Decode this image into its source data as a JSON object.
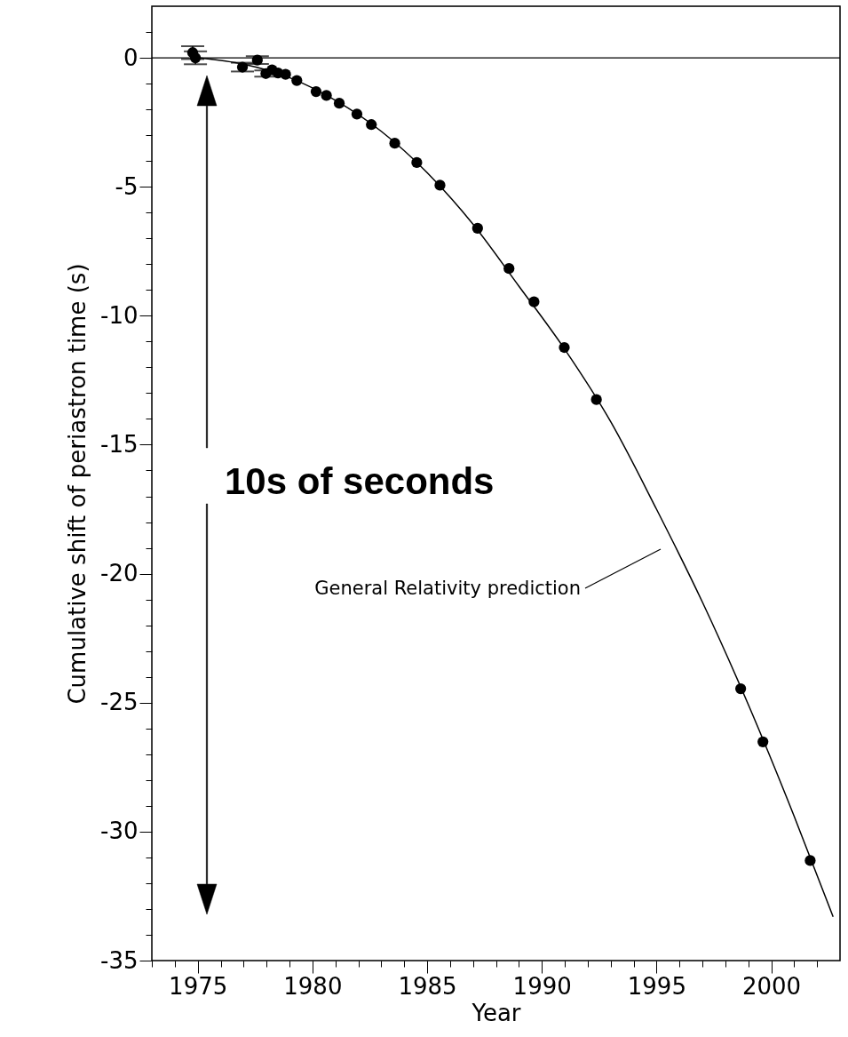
{
  "chart_data": {
    "type": "scatter",
    "xlabel": "Year",
    "ylabel": "Cumulative shift of periastron time (s)",
    "annotations": [
      "10s of seconds"
    ],
    "xlim": [
      1973,
      2003
    ],
    "ylim": [
      -35,
      2
    ],
    "xticks": [
      {
        "value": 1973,
        "label": null
      },
      {
        "value": 1974,
        "label": null
      },
      1975,
      {
        "value": 1976,
        "label": null
      },
      {
        "value": 1977,
        "label": null
      },
      {
        "value": 1978,
        "label": null
      },
      {
        "value": 1979,
        "label": null
      },
      1980,
      {
        "value": 1981,
        "label": null
      },
      {
        "value": 1982,
        "label": null
      },
      {
        "value": 1983,
        "label": null
      },
      {
        "value": 1984,
        "label": null
      },
      1985,
      {
        "value": 1986,
        "label": null
      },
      {
        "value": 1987,
        "label": null
      },
      {
        "value": 1988,
        "label": null
      },
      {
        "value": 1989,
        "label": null
      },
      1990,
      {
        "value": 1991,
        "label": null
      },
      {
        "value": 1992,
        "label": null
      },
      {
        "value": 1993,
        "label": null
      },
      {
        "value": 1994,
        "label": null
      },
      1995,
      {
        "value": 1996,
        "label": null
      },
      {
        "value": 1997,
        "label": null
      },
      {
        "value": 1998,
        "label": null
      },
      {
        "value": 1999,
        "label": null
      },
      2000,
      {
        "value": 2001,
        "label": null
      },
      {
        "value": 2002,
        "label": null
      }
    ],
    "yticks": [
      -35,
      {
        "value": -34,
        "label": null
      },
      {
        "value": -33,
        "label": null
      },
      {
        "value": -32,
        "label": null
      },
      {
        "value": -31,
        "label": null
      },
      -30,
      {
        "value": -29,
        "label": null
      },
      {
        "value": -28,
        "label": null
      },
      {
        "value": -27,
        "label": null
      },
      {
        "value": -26,
        "label": null
      },
      -25,
      {
        "value": -24,
        "label": null
      },
      {
        "value": -23,
        "label": null
      },
      {
        "value": -22,
        "label": null
      },
      {
        "value": -21,
        "label": null
      },
      -20,
      {
        "value": -19,
        "label": null
      },
      {
        "value": -18,
        "label": null
      },
      {
        "value": -17,
        "label": null
      },
      {
        "value": -16,
        "label": null
      },
      -15,
      {
        "value": -14,
        "label": null
      },
      {
        "value": -13,
        "label": null
      },
      {
        "value": -12,
        "label": null
      },
      {
        "value": -11,
        "label": null
      },
      -10,
      {
        "value": -9,
        "label": null
      },
      {
        "value": -8,
        "label": null
      },
      {
        "value": -7,
        "label": null
      },
      {
        "value": -6,
        "label": null
      },
      -5,
      {
        "value": -4,
        "label": null
      },
      {
        "value": -3,
        "label": null
      },
      {
        "value": -2,
        "label": null
      },
      {
        "value": -1,
        "label": null
      },
      0,
      {
        "value": 1,
        "label": null
      }
    ],
    "ref_lines": [
      {
        "axis": "y",
        "value": 0,
        "color": "#000000"
      }
    ],
    "series": [
      {
        "type": "scatter",
        "marker": "circle",
        "color": "#000000",
        "x": [
          1974.78,
          1974.9,
          1976.95,
          1977.6,
          1977.97,
          1978.24,
          1978.5,
          1978.83,
          1979.32,
          1980.16,
          1980.61,
          1981.17,
          1981.94,
          1982.57,
          1983.59,
          1984.55,
          1985.56,
          1987.2,
          1988.57,
          1989.66,
          1990.98,
          1992.38,
          1998.67,
          1999.64,
          2001.7
        ],
        "values": [
          0.2,
          0.0,
          -0.36,
          -0.09,
          -0.61,
          -0.47,
          -0.59,
          -0.64,
          -0.88,
          -1.31,
          -1.46,
          -1.76,
          -2.18,
          -2.59,
          -3.31,
          -4.06,
          -4.94,
          -6.61,
          -8.17,
          -9.46,
          -11.23,
          -13.25,
          -24.46,
          -26.52,
          -31.12
        ],
        "errors": [
          0.25,
          0.25,
          0.17,
          0.15,
          0.12,
          null,
          null,
          null,
          null,
          null,
          null,
          null,
          null,
          null,
          null,
          null,
          null,
          null,
          null,
          null,
          null,
          null,
          null,
          null,
          null
        ]
      },
      {
        "type": "line",
        "name": "General Relativity prediction",
        "color": "#000000",
        "x": [
          1975,
          1977,
          1979,
          1981,
          1983,
          1985,
          1987,
          1989,
          1991,
          1993,
          1995,
          1997,
          1999,
          2001,
          2002.7
        ],
        "values": [
          0,
          -0.25,
          -0.77,
          -1.65,
          -2.85,
          -4.45,
          -6.45,
          -8.85,
          -11.3,
          -14.1,
          -17.5,
          -21.1,
          -25.07,
          -29.4,
          -33.3
        ]
      }
    ]
  }
}
